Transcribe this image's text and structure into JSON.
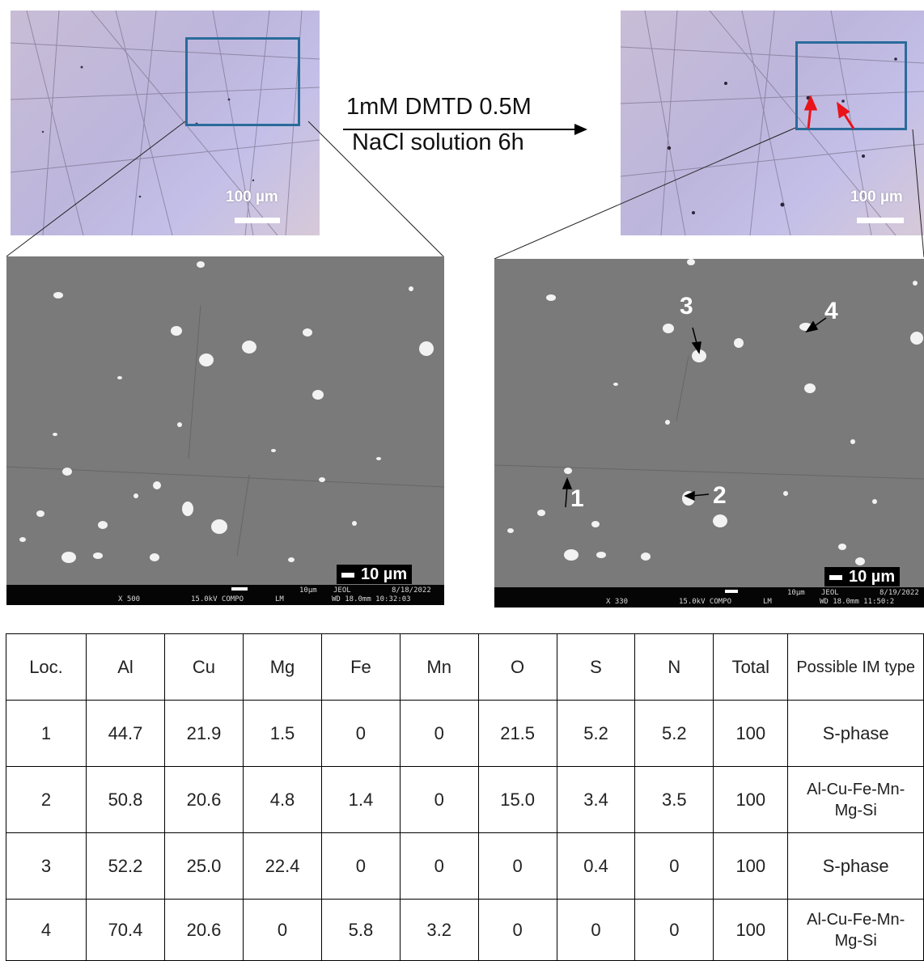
{
  "panels": {
    "optical_left": {
      "scale": "100 µm"
    },
    "optical_right": {
      "scale": "100 µm"
    },
    "arrow_label": {
      "line1": "1mM DMTD 0.5M",
      "line2": "NaCl solution 6h"
    },
    "sem_left": {
      "scale": "10 µm",
      "footer": {
        "mag": "X 500",
        "kv": "15.0kV COMPO",
        "lm": "LM",
        "bar": "10µm",
        "brand": "JEOL",
        "date": "8/18/2022",
        "wd": "WD 18.0mm 10:32:03"
      }
    },
    "sem_right": {
      "scale": "10 µm",
      "footer": {
        "mag": "X 330",
        "kv": "15.0kV COMPO",
        "lm": "LM",
        "bar": "10µm",
        "brand": "JEOL",
        "date": "8/19/2022",
        "wd": "WD 18.0mm 11:50:2"
      },
      "markers": [
        "1",
        "2",
        "3",
        "4"
      ]
    }
  },
  "table": {
    "headers": [
      "Loc.",
      "Al",
      "Cu",
      "Mg",
      "Fe",
      "Mn",
      "O",
      "S",
      "N",
      "Total",
      "Possible IM type"
    ],
    "rows": [
      [
        "1",
        "44.7",
        "21.9",
        "1.5",
        "0",
        "0",
        "21.5",
        "5.2",
        "5.2",
        "100",
        "S-phase"
      ],
      [
        "2",
        "50.8",
        "20.6",
        "4.8",
        "1.4",
        "0",
        "15.0",
        "3.4",
        "3.5",
        "100",
        "Al-Cu-Fe-Mn-Mg-Si"
      ],
      [
        "3",
        "52.2",
        "25.0",
        "22.4",
        "0",
        "0",
        "0",
        "0.4",
        "0",
        "100",
        "S-phase"
      ],
      [
        "4",
        "70.4",
        "20.6",
        "0",
        "5.8",
        "3.2",
        "0",
        "0",
        "0",
        "100",
        "Al-Cu-Fe-Mn-Mg-Si"
      ]
    ]
  },
  "colors": {
    "roi_box": "#2a6b9a",
    "red_arrow": "#e8141a"
  }
}
